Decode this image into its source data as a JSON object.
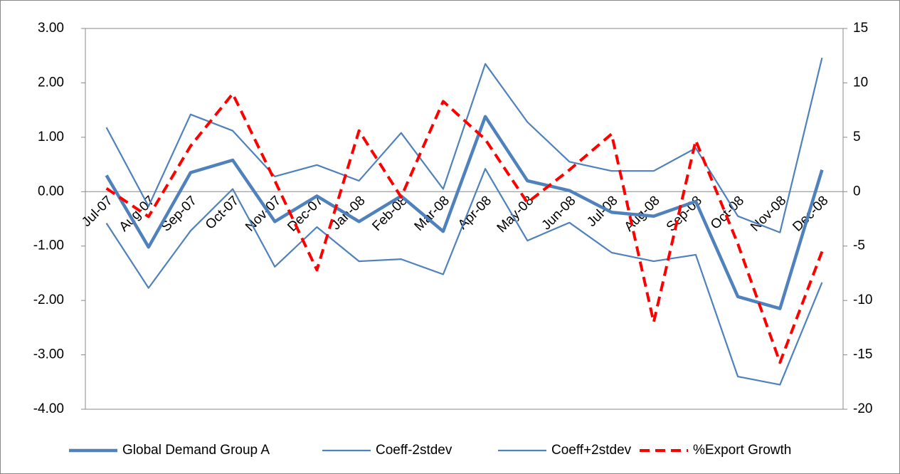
{
  "chart_data": {
    "type": "line",
    "categories": [
      "Jul-07",
      "Aug-07",
      "Sep-07",
      "Oct-07",
      "Nov-07",
      "Dec-07",
      "Jan-08",
      "Feb-08",
      "Mar-08",
      "Apr-08",
      "May-08",
      "Jun-08",
      "Jul-08",
      "Aug-08",
      "Sep-08",
      "Oct-08",
      "Nov-08",
      "Dec-08"
    ],
    "series": [
      {
        "name": "Global Demand Group A",
        "color": "#4f81bd",
        "width": 4.5,
        "dashed": false,
        "values": [
          0.3,
          -1.02,
          0.35,
          0.58,
          -0.55,
          -0.08,
          -0.55,
          -0.08,
          -0.73,
          1.38,
          0.2,
          0.02,
          -0.38,
          -0.45,
          -0.18,
          -1.93,
          -2.15,
          0.4
        ]
      },
      {
        "name": "Coeff-2stdev",
        "color": "#4f81bd",
        "width": 2.2,
        "dashed": false,
        "values": [
          -0.58,
          -1.77,
          -0.72,
          0.05,
          -1.38,
          -0.65,
          -1.28,
          -1.24,
          -1.52,
          0.42,
          -0.9,
          -0.57,
          -1.12,
          -1.28,
          -1.16,
          -3.4,
          -3.55,
          -1.67
        ]
      },
      {
        "name": "Coeff+2stdev",
        "color": "#4f81bd",
        "width": 2.2,
        "dashed": false,
        "values": [
          1.18,
          -0.27,
          1.42,
          1.12,
          0.28,
          0.49,
          0.2,
          1.08,
          0.05,
          2.35,
          1.28,
          0.55,
          0.38,
          0.38,
          0.8,
          -0.45,
          -0.75,
          2.46
        ]
      },
      {
        "name": "%Export Growth",
        "color": "#ff0000",
        "width": 4,
        "dashed": true,
        "axis": "y2",
        "values": [
          0.3,
          -2.3,
          4.2,
          9.0,
          1.0,
          -7.2,
          5.6,
          -0.5,
          8.3,
          4.8,
          -1.0,
          2.0,
          5.3,
          -12.0,
          4.7,
          -4.8,
          -15.7,
          -5.5
        ]
      }
    ],
    "ylim": [
      -4,
      3
    ],
    "yticks": [
      {
        "value": -4,
        "label": "-4.00"
      },
      {
        "value": -3,
        "label": "-3.00"
      },
      {
        "value": -2,
        "label": "-2.00"
      },
      {
        "value": -1,
        "label": "-1.00"
      },
      {
        "value": 0,
        "label": "0.00"
      },
      {
        "value": 1,
        "label": "1.00"
      },
      {
        "value": 2,
        "label": "2.00"
      },
      {
        "value": 3,
        "label": "3.00"
      }
    ],
    "y2lim": [
      -20,
      15
    ],
    "y2ticks": [
      -20,
      -15,
      -10,
      -5,
      0,
      5,
      10,
      15
    ],
    "legend": "bottom"
  }
}
